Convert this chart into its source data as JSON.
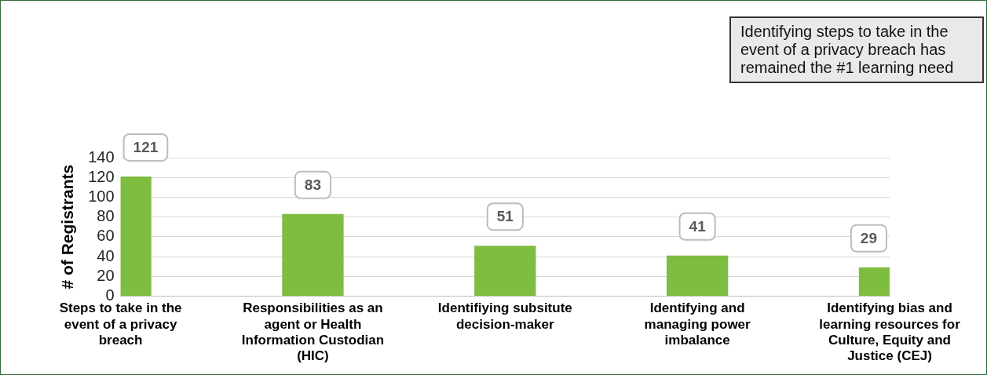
{
  "chart_data": {
    "type": "bar",
    "ylabel": "# of Registrants",
    "categories": [
      "Steps to take in the event of a privacy breach",
      "Responsibilities as an agent or Health Information Custodian (HIC)",
      "Identifiying subsitute decision-maker",
      "Identifying and managing power imbalance",
      "Identifying bias and learning resources for Culture, Equity and Justice (CEJ)"
    ],
    "values": [
      121,
      83,
      51,
      41,
      29
    ],
    "color": "#7fbd41",
    "ylim": [
      0,
      140
    ],
    "yticks": [
      0,
      20,
      40,
      60,
      80,
      100,
      120,
      140
    ],
    "grid": "y",
    "data_labels": true,
    "annotations": [
      "Identifying steps to take in the event of a privacy breach has remained the #1 learning need"
    ]
  }
}
